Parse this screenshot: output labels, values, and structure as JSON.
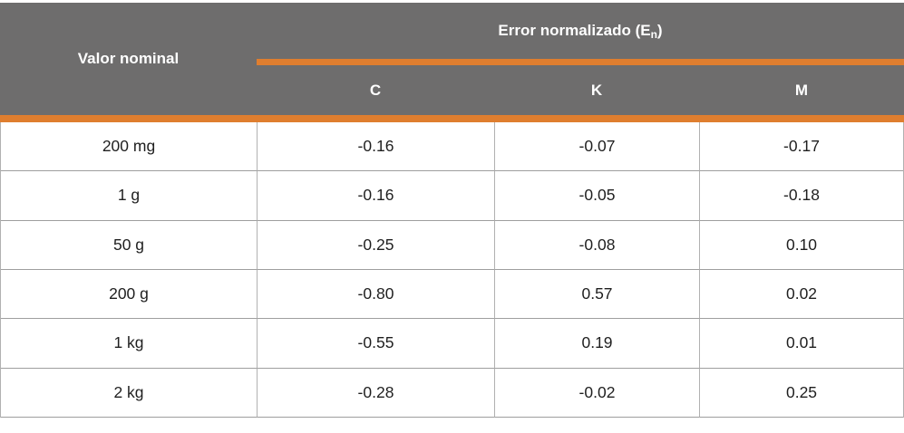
{
  "colors": {
    "header_bg": "#6E6D6D",
    "accent_orange": "#DF7E2F",
    "grid_line": "#9E9E9E",
    "divider_light": "#B1B1B1",
    "header_text": "#FFFFFF",
    "cell_text": "#1F1F1F"
  },
  "header": {
    "row_label": "Valor nominal",
    "group_title_prefix": "Error normalizado (E",
    "group_title_sub": "n",
    "group_title_suffix": ")",
    "columns": [
      "C",
      "K",
      "M"
    ]
  },
  "table": {
    "rows": [
      {
        "nominal": "200 mg",
        "c": "-0.16",
        "k": "-0.07",
        "m": "-0.17"
      },
      {
        "nominal": "1 g",
        "c": "-0.16",
        "k": "-0.05",
        "m": "-0.18"
      },
      {
        "nominal": "50 g",
        "c": "-0.25",
        "k": "-0.08",
        "m": "0.10"
      },
      {
        "nominal": "200 g",
        "c": "-0.80",
        "k": "0.57",
        "m": "0.02"
      },
      {
        "nominal": "1 kg",
        "c": "-0.55",
        "k": "0.19",
        "m": "0.01"
      },
      {
        "nominal": "2 kg",
        "c": "-0.28",
        "k": "-0.02",
        "m": "0.25"
      }
    ]
  },
  "chart_data": {
    "type": "table",
    "title": "Error normalizado (En)",
    "row_header": "Valor nominal",
    "columns": [
      "C",
      "K",
      "M"
    ],
    "categories": [
      "200 mg",
      "1 g",
      "50 g",
      "200 g",
      "1 kg",
      "2 kg"
    ],
    "series": [
      {
        "name": "C",
        "values": [
          -0.16,
          -0.16,
          -0.25,
          -0.8,
          -0.55,
          -0.28
        ]
      },
      {
        "name": "K",
        "values": [
          -0.07,
          -0.05,
          -0.08,
          0.57,
          0.19,
          -0.02
        ]
      },
      {
        "name": "M",
        "values": [
          -0.17,
          -0.18,
          0.1,
          0.02,
          0.01,
          0.25
        ]
      }
    ]
  }
}
